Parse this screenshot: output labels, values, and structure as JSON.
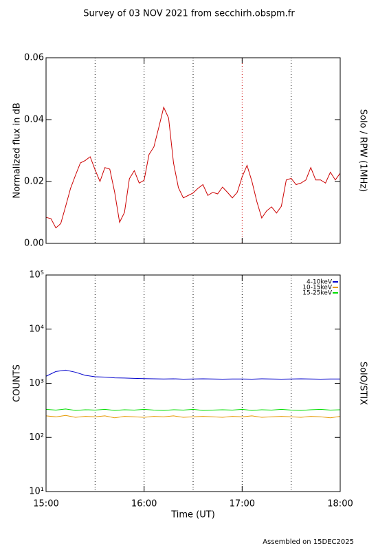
{
  "title": "Survey of 03 NOV 2021 from secchirh.obspm.fr",
  "footer": "Assembled on 15DEC2025",
  "chart_data": [
    {
      "type": "line",
      "y_label": "Normalized flux in dB",
      "side_label": "Solo / RPW (1MHz)",
      "xlim": [
        15,
        18
      ],
      "xticks": [
        15,
        16,
        17,
        18
      ],
      "ylim": [
        0,
        0.06
      ],
      "yticks": [
        {
          "value": 0,
          "label": "0.00"
        },
        {
          "value": 0.02,
          "label": "0.02"
        },
        {
          "value": 0.04,
          "label": "0.04"
        },
        {
          "value": 0.06,
          "label": "0.06"
        }
      ],
      "log_scale": false,
      "vlines": [
        15.5,
        16,
        16.5,
        17,
        17.5
      ],
      "vline_colors": [
        "#000000",
        "#000000",
        "#000000",
        "#cc0000",
        "#000000"
      ],
      "x": [
        15,
        15.05,
        15.1,
        15.15,
        15.2,
        15.25,
        15.3,
        15.35,
        15.4,
        15.45,
        15.5,
        15.55,
        15.6,
        15.65,
        15.7,
        15.75,
        15.8,
        15.85,
        15.9,
        15.95,
        16,
        16.05,
        16.1,
        16.15,
        16.2,
        16.25,
        16.3,
        16.35,
        16.4,
        16.45,
        16.5,
        16.55,
        16.6,
        16.65,
        16.7,
        16.75,
        16.8,
        16.85,
        16.9,
        16.95,
        17,
        17.05,
        17.1,
        17.15,
        17.2,
        17.25,
        17.3,
        17.35,
        17.4,
        17.45,
        17.5,
        17.55,
        17.6,
        17.65,
        17.7,
        17.75,
        17.8,
        17.85,
        17.9,
        17.95,
        18
      ],
      "series": [
        {
          "color": "#cc0000",
          "values": [
            0.0084,
            0.008,
            0.005,
            0.0064,
            0.012,
            0.0178,
            0.022,
            0.026,
            0.0268,
            0.028,
            0.0238,
            0.02,
            0.0245,
            0.024,
            0.0165,
            0.0068,
            0.01,
            0.0209,
            0.0235,
            0.0195,
            0.0204,
            0.0287,
            0.0312,
            0.0375,
            0.044,
            0.0405,
            0.026,
            0.018,
            0.0147,
            0.0155,
            0.0163,
            0.0178,
            0.019,
            0.0155,
            0.0165,
            0.016,
            0.0182,
            0.0165,
            0.0147,
            0.0165,
            0.0215,
            0.0252,
            0.02,
            0.0135,
            0.0082,
            0.0105,
            0.0118,
            0.0098,
            0.012,
            0.0205,
            0.021,
            0.019,
            0.0195,
            0.0205,
            0.0245,
            0.0205,
            0.0205,
            0.0195,
            0.023,
            0.0205,
            0.0227
          ]
        }
      ]
    },
    {
      "type": "line",
      "y_label": "COUNTS",
      "side_label": "SolO/STIX",
      "x_label": "Time (UT)",
      "xlim": [
        15,
        18
      ],
      "xticks": [
        {
          "value": 15,
          "label": "15:00"
        },
        {
          "value": 16,
          "label": "16:00"
        },
        {
          "value": 17,
          "label": "17:00"
        },
        {
          "value": 18,
          "label": "18:00"
        }
      ],
      "ylim": [
        10,
        100000
      ],
      "yticks": [
        {
          "value": 10,
          "label": "10¹"
        },
        {
          "value": 100,
          "label": "10²"
        },
        {
          "value": 1000,
          "label": "10³"
        },
        {
          "value": 10000,
          "label": "10⁴"
        },
        {
          "value": 100000,
          "label": "10⁵"
        }
      ],
      "log_scale": true,
      "legend": "upper right",
      "vlines": [
        15.5,
        16,
        16.5,
        17,
        17.5
      ],
      "vline_colors": [
        "#000000",
        "#000000",
        "#000000",
        "#000000",
        "#000000"
      ],
      "x": [
        15,
        15.1,
        15.2,
        15.3,
        15.4,
        15.5,
        15.6,
        15.7,
        15.8,
        15.9,
        16,
        16.1,
        16.2,
        16.3,
        16.4,
        16.5,
        16.6,
        16.7,
        16.8,
        16.9,
        17,
        17.1,
        17.2,
        17.3,
        17.4,
        17.5,
        17.6,
        17.7,
        17.8,
        17.9,
        18
      ],
      "series": [
        {
          "name": "4-10keV",
          "color": "#0000cc",
          "values": [
            1350,
            1650,
            1750,
            1600,
            1400,
            1320,
            1300,
            1260,
            1250,
            1230,
            1220,
            1210,
            1200,
            1210,
            1190,
            1200,
            1210,
            1200,
            1190,
            1200,
            1200,
            1190,
            1210,
            1200,
            1190,
            1200,
            1210,
            1200,
            1190,
            1200,
            1200
          ]
        },
        {
          "name": "10-15keV",
          "color": "#e69a00",
          "values": [
            250,
            240,
            255,
            235,
            245,
            240,
            250,
            230,
            245,
            240,
            235,
            245,
            240,
            250,
            235,
            240,
            245,
            240,
            235,
            245,
            240,
            250,
            235,
            240,
            245,
            240,
            235,
            245,
            240,
            230,
            245
          ]
        },
        {
          "name": "15-25keV",
          "color": "#00dd00",
          "values": [
            330,
            320,
            335,
            315,
            325,
            320,
            330,
            315,
            325,
            320,
            330,
            320,
            315,
            325,
            320,
            330,
            315,
            320,
            325,
            320,
            330,
            315,
            325,
            320,
            330,
            320,
            315,
            325,
            330,
            320,
            325
          ]
        }
      ]
    }
  ]
}
